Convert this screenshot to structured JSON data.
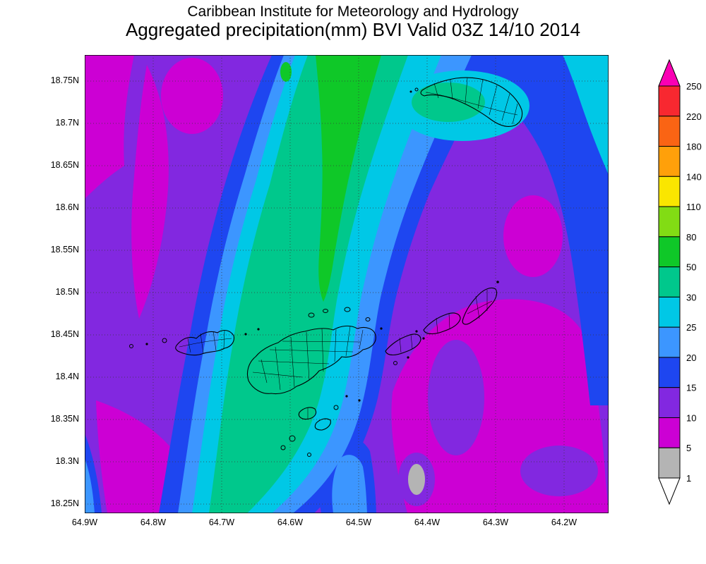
{
  "header": {
    "line1": "Caribbean Institute for Meteorology and Hydrology",
    "line2": "Aggregated precipitation(mm) BVI Valid 03Z 14/10 2014"
  },
  "map": {
    "lat_labels": [
      "18.75N",
      "18.7N",
      "18.65N",
      "18.6N",
      "18.55N",
      "18.5N",
      "18.45N",
      "18.4N",
      "18.35N",
      "18.3N",
      "18.25N"
    ],
    "lon_labels": [
      "64.9W",
      "64.8W",
      "64.7W",
      "64.6W",
      "64.5W",
      "64.4W",
      "64.3W",
      "64.2W"
    ]
  },
  "colorbar": {
    "levels": [
      "250",
      "220",
      "180",
      "140",
      "110",
      "80",
      "50",
      "30",
      "25",
      "20",
      "15",
      "10",
      "5",
      "1"
    ],
    "band_colors_top_to_bottom": [
      "#f82830",
      "#fa6414",
      "#ffa00a",
      "#fae600",
      "#82dc14",
      "#0fc828",
      "#00c88c",
      "#00c8e6",
      "#3c96ff",
      "#1e46f0",
      "#8228e0",
      "#cc00d4",
      "#b4b4b4"
    ],
    "above_color": "#fa00b4",
    "below_color": "#ffffff"
  },
  "map_colors": {
    "violet": "#8228e0",
    "magenta": "#cc00d4",
    "blue": "#1e46f0",
    "light_blue": "#3c96ff",
    "cyan": "#00c8e6",
    "teal": "#00c88c",
    "green": "#0fc828",
    "gray": "#b4b4b4"
  },
  "chart_data": {
    "type": "filled_contour_map",
    "title": "Aggregated precipitation(mm) BVI Valid 03Z 14/10 2014",
    "source": "Caribbean Institute for Meteorology and Hydrology",
    "units": "mm",
    "region": "BVI",
    "valid_time": "03Z 14/10 2014",
    "contour_levels": [
      1,
      5,
      10,
      15,
      20,
      25,
      30,
      50,
      80,
      110,
      140,
      180,
      220,
      250
    ],
    "lat_ticks": [
      18.75,
      18.7,
      18.65,
      18.6,
      18.55,
      18.5,
      18.45,
      18.4,
      18.35,
      18.3,
      18.25
    ],
    "lon_ticks": [
      64.9,
      64.8,
      64.7,
      64.6,
      64.5,
      64.4,
      64.3,
      64.2
    ],
    "legend_position": "right",
    "grid": "dotted"
  }
}
